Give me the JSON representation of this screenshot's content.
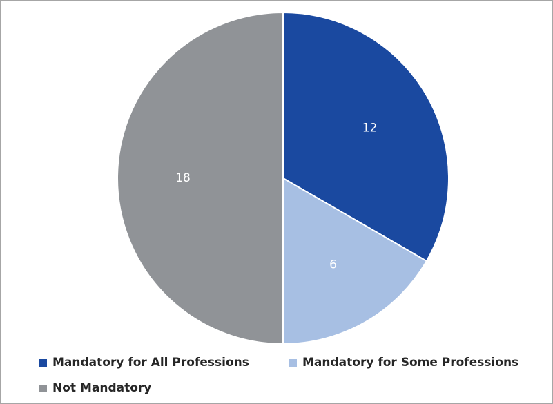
{
  "chart_data": {
    "type": "pie",
    "title": "",
    "categories": [
      "Mandatory for All Professions",
      "Mandatory for Some Professions",
      "Not Mandatory"
    ],
    "values": [
      12,
      6,
      18
    ],
    "colors": [
      "#1a49a0",
      "#a7bfe3",
      "#909397"
    ],
    "data_labels": [
      "12",
      "6",
      "18"
    ],
    "legend_position": "bottom",
    "start_angle": "12 o'clock, clockwise"
  },
  "legend": {
    "items": [
      {
        "label": "Mandatory for All Professions",
        "color": "#1a49a0"
      },
      {
        "label": "Mandatory for Some Professions",
        "color": "#a7bfe3"
      },
      {
        "label": "Not Mandatory",
        "color": "#909397"
      }
    ]
  }
}
